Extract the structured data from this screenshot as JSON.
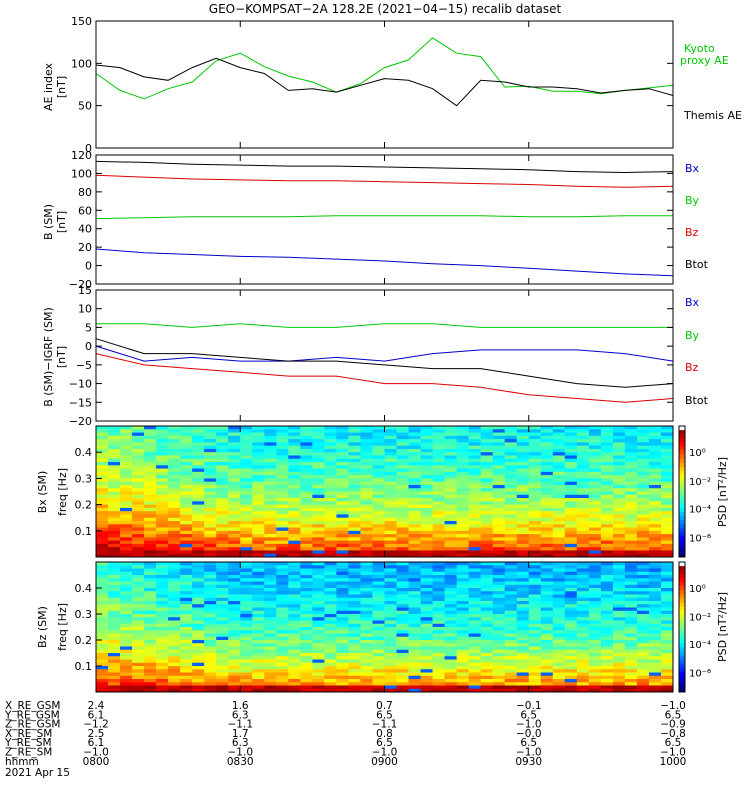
{
  "title": "GEO−KOMPSAT−2A 128.2E (2021−04−15) recalib dataset",
  "chart_data": [
    {
      "panel": "ae",
      "type": "line",
      "ylabel_lines": [
        "AE index",
        "[nT]"
      ],
      "ylim": [
        0,
        150
      ],
      "yticks": [
        "0",
        "50",
        "100",
        "150"
      ],
      "x": [
        0,
        5,
        10,
        15,
        20,
        25,
        30,
        35,
        40,
        45,
        50,
        55,
        60,
        65,
        70,
        75,
        80,
        85,
        90,
        95,
        100,
        105,
        110,
        115,
        120
      ],
      "series": [
        {
          "name": "Kyoto proxy AE",
          "name_lines": [
            "Kyoto",
            "proxy AE"
          ],
          "color": "#00c800",
          "values": [
            88,
            68,
            58,
            70,
            78,
            103,
            112,
            96,
            85,
            78,
            66,
            76,
            95,
            104,
            130,
            112,
            108,
            72,
            73,
            67,
            67,
            64,
            68,
            71,
            74
          ]
        },
        {
          "name": "Themis AE",
          "name_lines": [
            "Themis AE"
          ],
          "color": "#000000",
          "values": [
            98,
            95,
            84,
            80,
            95,
            106,
            95,
            88,
            68,
            70,
            66,
            74,
            82,
            80,
            70,
            50,
            80,
            78,
            72,
            72,
            70,
            65,
            68,
            70,
            62
          ]
        }
      ]
    },
    {
      "panel": "b",
      "type": "line",
      "ylabel_lines": [
        "B (SM)",
        "[nT]"
      ],
      "ylim": [
        -20,
        120
      ],
      "yticks": [
        "−20",
        "0",
        "20",
        "40",
        "60",
        "80",
        "100",
        "120"
      ],
      "x": [
        0,
        10,
        20,
        30,
        40,
        50,
        60,
        70,
        80,
        90,
        100,
        110,
        120
      ],
      "series": [
        {
          "name": "Bx",
          "color": "#0000cc",
          "values": [
            18,
            14,
            12,
            10,
            9,
            7,
            5,
            2,
            0,
            -3,
            -6,
            -9,
            -11
          ]
        },
        {
          "name": "By",
          "color": "#00c800",
          "values": [
            51,
            52,
            53,
            53,
            53,
            54,
            54,
            54,
            54,
            53,
            53,
            54,
            54
          ]
        },
        {
          "name": "Bz",
          "color": "#dd0000",
          "values": [
            98,
            96,
            94,
            93,
            92,
            92,
            91,
            90,
            89,
            88,
            86,
            85,
            86
          ]
        },
        {
          "name": "Btot",
          "color": "#000000",
          "values": [
            113,
            112,
            110,
            109,
            108,
            108,
            107,
            106,
            105,
            104,
            102,
            101,
            102
          ]
        }
      ]
    },
    {
      "panel": "dbirgf",
      "type": "line",
      "ylabel_lines": [
        "B (SM)−IGRF (SM)",
        "[nT]"
      ],
      "ylim": [
        -20,
        15
      ],
      "yticks": [
        "−20",
        "−15",
        "−10",
        "−5",
        "0",
        "5",
        "10",
        "15"
      ],
      "x": [
        0,
        10,
        20,
        30,
        40,
        50,
        60,
        70,
        80,
        90,
        100,
        110,
        120
      ],
      "series": [
        {
          "name": "Bx",
          "color": "#0000cc",
          "values": [
            0,
            -4,
            -3,
            -4,
            -4,
            -3,
            -4,
            -2,
            -1,
            -1,
            -1,
            -2,
            -4
          ]
        },
        {
          "name": "By",
          "color": "#00c800",
          "values": [
            6,
            6,
            5,
            6,
            5,
            5,
            6,
            6,
            5,
            5,
            5,
            5,
            5
          ]
        },
        {
          "name": "Bz",
          "color": "#dd0000",
          "values": [
            -2,
            -5,
            -6,
            -7,
            -8,
            -8,
            -10,
            -10,
            -11,
            -13,
            -14,
            -15,
            -14
          ]
        },
        {
          "name": "Btot",
          "color": "#000000",
          "values": [
            2,
            -2,
            -2,
            -3,
            -4,
            -4,
            -5,
            -6,
            -6,
            -8,
            -10,
            -11,
            -10
          ]
        }
      ]
    },
    {
      "panel": "spec_bx",
      "type": "heatmap",
      "ylabel_lines": [
        "Bx (SM)",
        "freq [Hz]"
      ],
      "yticks": [
        "0.1",
        "0.2",
        "0.3",
        "0.4"
      ],
      "colorbar_label": "PSD [nT²/Hz]",
      "colorbar_ticks": [
        "10⁰",
        "10⁻²",
        "10⁻⁴",
        "10⁻⁶"
      ]
    },
    {
      "panel": "spec_bz",
      "type": "heatmap",
      "ylabel_lines": [
        "Bz (SM)",
        "freq [Hz]"
      ],
      "yticks": [
        "0.1",
        "0.2",
        "0.3",
        "0.4"
      ],
      "colorbar_label": "PSD [nT²/Hz]",
      "colorbar_ticks": [
        "10⁰",
        "10⁻²",
        "10⁻⁴",
        "10⁻⁶"
      ]
    }
  ],
  "ephemeris": {
    "rows": [
      {
        "label": "X_RE_GSM",
        "values": [
          "2.4",
          "1.6",
          "0.7",
          "−0.1",
          "−1.0"
        ]
      },
      {
        "label": "Y_RE_GSM",
        "values": [
          "6.1",
          "6.3",
          "6.5",
          "6.5",
          "6.5"
        ]
      },
      {
        "label": "Z_RE_GSM",
        "values": [
          "−1.2",
          "−1.1",
          "−1.1",
          "−1.0",
          "−0.9"
        ]
      },
      {
        "label": "X_RE_SM",
        "values": [
          "2.5",
          "1.7",
          "0.8",
          "−0.0",
          "−0.8"
        ]
      },
      {
        "label": "Y_RE_SM",
        "values": [
          "6.1",
          "6.3",
          "6.5",
          "6.5",
          "6.5"
        ]
      },
      {
        "label": "Z_RE_SM",
        "values": [
          "−1.0",
          "−1.0",
          "−1.0",
          "−1.0",
          "−1.0"
        ]
      },
      {
        "label": "hhmm",
        "values": [
          "0800",
          "0830",
          "0900",
          "0930",
          "1000"
        ]
      }
    ],
    "date": "2021 Apr 15"
  }
}
